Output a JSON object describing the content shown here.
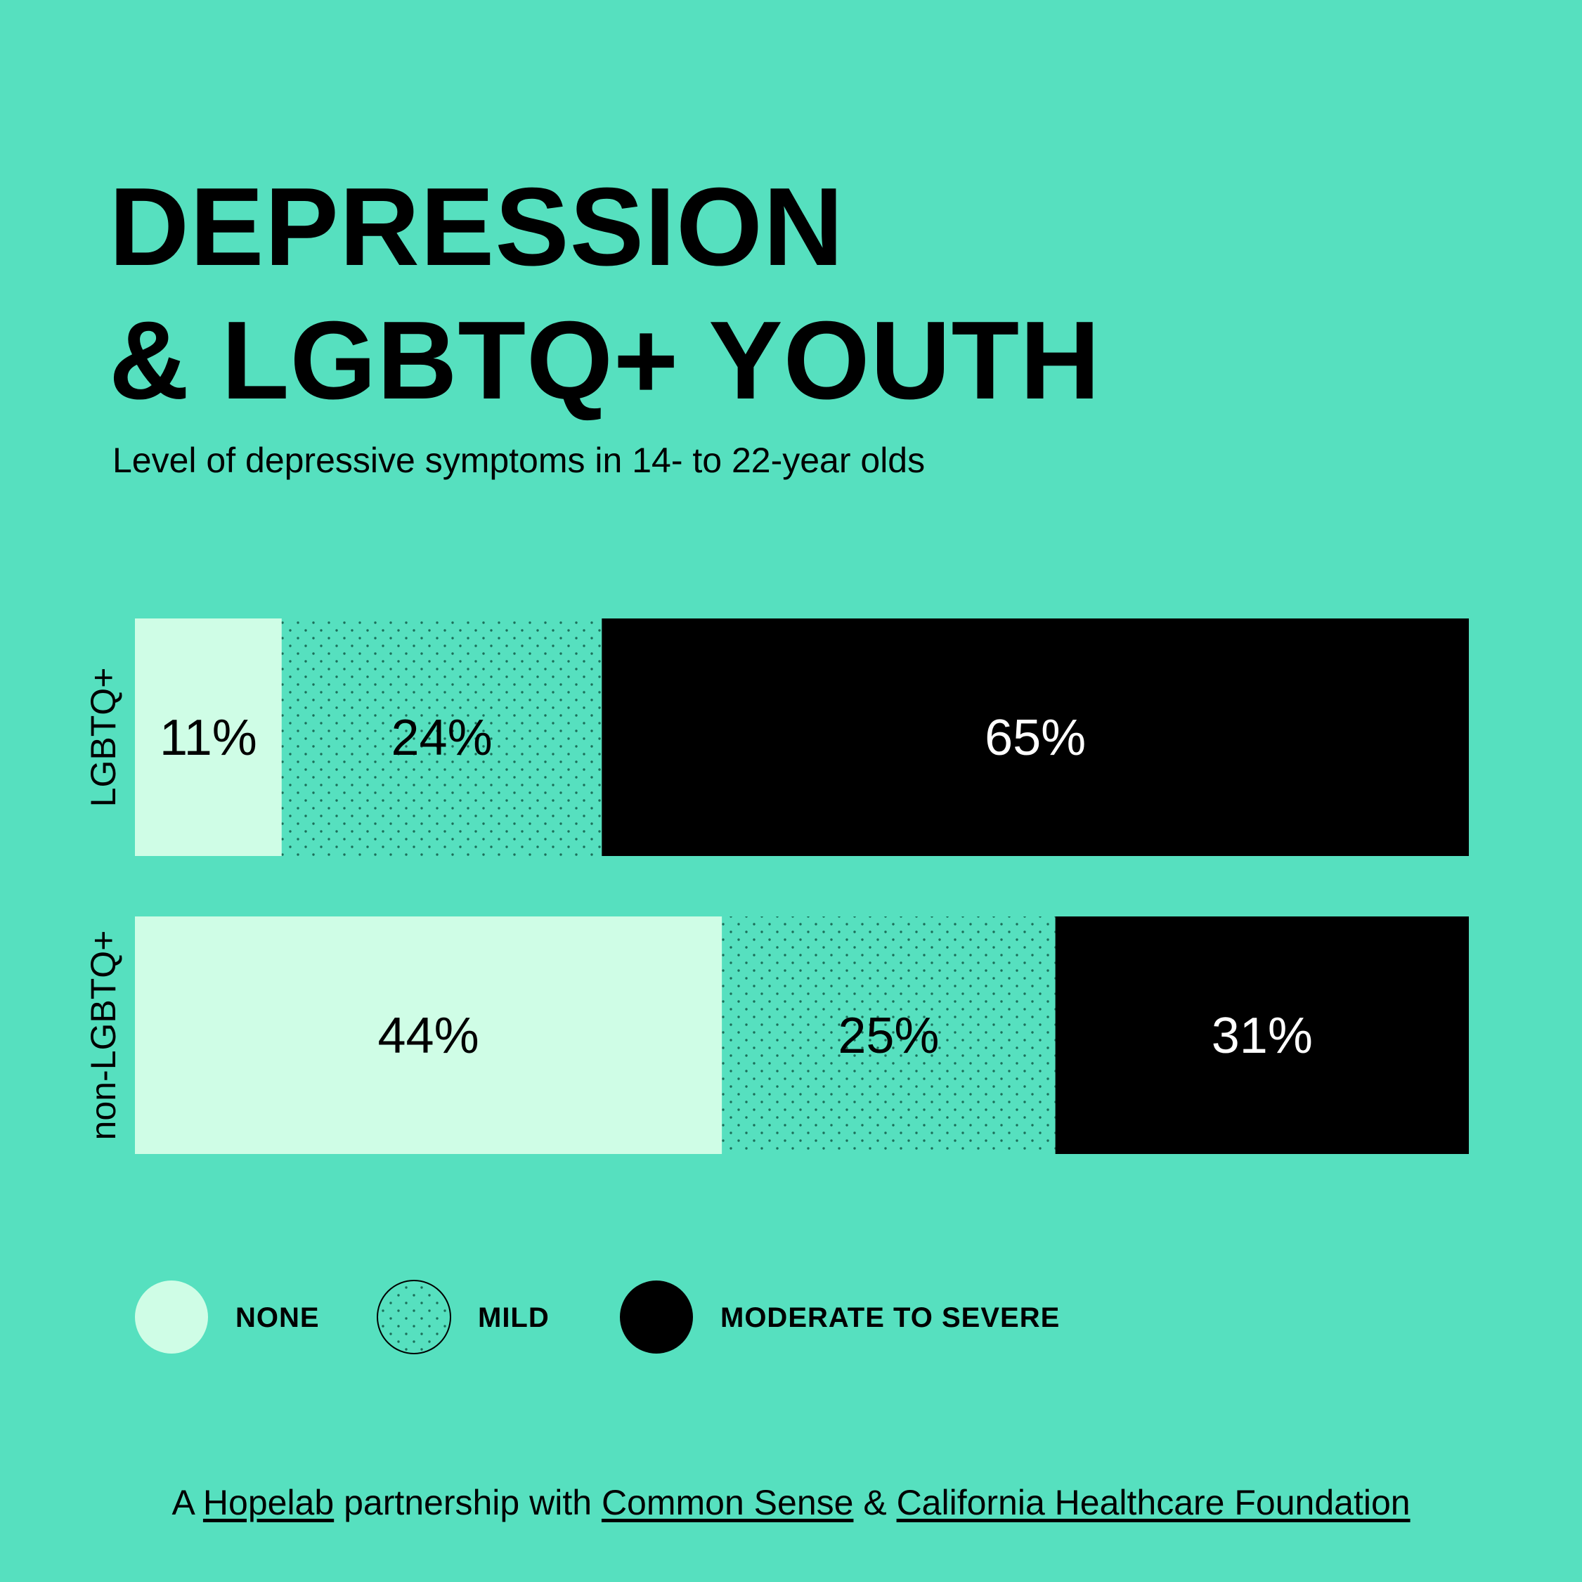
{
  "header": {
    "title_line1": "DEPRESSION",
    "title_line2": "& LGBTQ+ YOUTH",
    "subtitle": "Level of depressive symptoms in 14- to 22-year olds"
  },
  "chart_data": {
    "type": "bar",
    "orientation": "horizontal",
    "stacked": true,
    "normalized": true,
    "categories": [
      "LGBTQ+",
      "non-LGBTQ+"
    ],
    "series": [
      {
        "name": "NONE",
        "values": [
          11,
          44
        ],
        "labels": [
          "11%",
          "44%"
        ],
        "color": "#cffde6",
        "pattern": "solid"
      },
      {
        "name": "MILD",
        "values": [
          24,
          25
        ],
        "labels": [
          "24%",
          "25%"
        ],
        "color": "#56e0bf",
        "pattern": "dots"
      },
      {
        "name": "MODERATE TO SEVERE",
        "values": [
          65,
          31
        ],
        "labels": [
          "65%",
          "31%"
        ],
        "color": "#000000",
        "pattern": "solid"
      }
    ],
    "legend_position": "bottom",
    "grid": false
  },
  "legend": {
    "none": "NONE",
    "mild": "MILD",
    "severe": "MODERATE TO SEVERE"
  },
  "footer": {
    "prefix": "A ",
    "hopelab": "Hopelab",
    "middle": " partnership with ",
    "common_sense": "Common Sense",
    "amp": " & ",
    "chcf": "California Healthcare Foundation"
  },
  "colors": {
    "background": "#56e0bf",
    "none": "#cffde6",
    "mild_dots": "#1b6e59",
    "severe": "#000000"
  }
}
